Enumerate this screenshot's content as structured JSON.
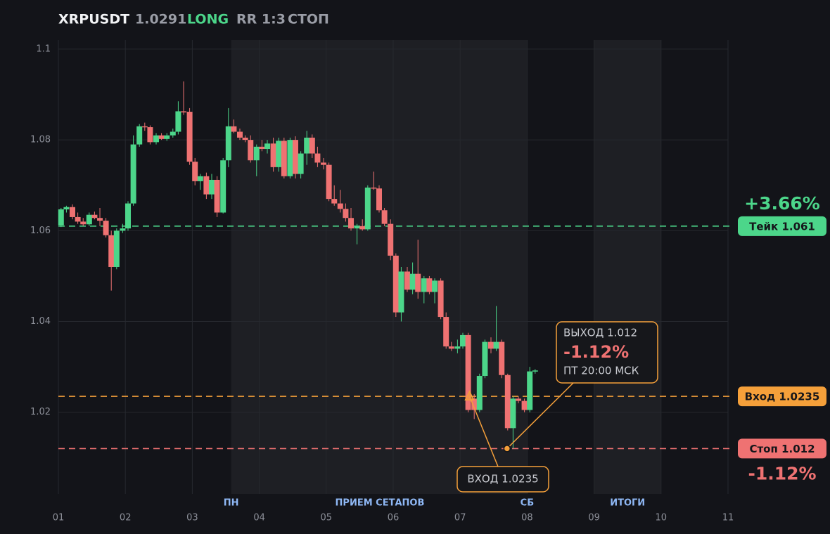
{
  "chart_data": {
    "type": "candlestick",
    "header": {
      "symbol": "XRPUSDT",
      "price": 1.0291,
      "side": "LONG",
      "rr": "RR 1:3",
      "status": "СТОП"
    },
    "x": [
      1.04,
      1.12,
      1.21,
      1.29,
      1.37,
      1.46,
      1.54,
      1.62,
      1.71,
      1.79,
      1.87,
      1.96,
      2.04,
      2.12,
      2.21,
      2.29,
      2.37,
      2.46,
      2.54,
      2.62,
      2.71,
      2.79,
      2.87,
      2.96,
      3.04,
      3.12,
      3.21,
      3.29,
      3.37,
      3.46,
      3.54,
      3.62,
      3.71,
      3.79,
      3.87,
      3.96,
      4.04,
      4.12,
      4.21,
      4.29,
      4.37,
      4.46,
      4.54,
      4.62,
      4.71,
      4.79,
      4.87,
      4.96,
      5.04,
      5.12,
      5.21,
      5.29,
      5.37,
      5.46,
      5.54,
      5.62,
      5.71,
      5.79,
      5.87,
      5.96,
      6.04,
      6.12,
      6.21,
      6.29,
      6.37,
      6.46,
      6.54,
      6.62,
      6.71,
      6.79,
      6.87,
      6.96,
      7.04,
      7.12,
      7.21,
      7.29,
      7.37,
      7.46,
      7.54,
      7.62,
      7.71,
      7.79,
      7.87,
      7.96,
      8.04,
      8.12
    ],
    "open": [
      1.0612,
      1.0647,
      1.0652,
      1.063,
      1.062,
      1.0614,
      1.0635,
      1.0628,
      1.0622,
      1.059,
      1.052,
      1.06,
      1.0605,
      1.066,
      1.079,
      1.083,
      1.0828,
      1.0795,
      1.081,
      1.0802,
      1.081,
      1.0818,
      1.0863,
      1.0862,
      1.0752,
      1.0709,
      1.072,
      1.068,
      1.0712,
      1.064,
      1.0755,
      1.083,
      1.0818,
      1.0805,
      1.08,
      1.0755,
      1.0785,
      1.078,
      1.0792,
      1.074,
      1.0798,
      1.072,
      1.08,
      1.0725,
      1.077,
      1.0805,
      1.077,
      1.075,
      1.0745,
      1.067,
      1.066,
      1.0648,
      1.0628,
      1.0605,
      1.061,
      1.0603,
      1.0695,
      1.0693,
      1.0645,
      1.0615,
      1.0545,
      1.042,
      1.051,
      1.047,
      1.0505,
      1.0465,
      1.0495,
      1.0465,
      1.049,
      1.041,
      1.0345,
      1.034,
      1.0345,
      1.037,
      1.023,
      1.0205,
      1.028,
      1.0355,
      1.034,
      1.0355,
      1.0282,
      1.0165,
      1.023,
      1.0225,
      1.0205,
      1.029
    ],
    "high": [
      1.065,
      1.0655,
      1.0658,
      1.064,
      1.0628,
      1.064,
      1.0642,
      1.065,
      1.0628,
      1.06,
      1.0605,
      1.0615,
      1.0665,
      1.081,
      1.0835,
      1.0838,
      1.0832,
      1.0815,
      1.0815,
      1.0815,
      1.0825,
      1.0885,
      1.0929,
      1.087,
      1.076,
      1.0725,
      1.0728,
      1.0725,
      1.072,
      1.076,
      1.087,
      1.0845,
      1.0825,
      1.081,
      1.081,
      1.079,
      1.08,
      1.08,
      1.0805,
      1.0805,
      1.0805,
      1.0805,
      1.0808,
      1.0775,
      1.082,
      1.0812,
      1.0785,
      1.076,
      1.075,
      1.07,
      1.069,
      1.066,
      1.065,
      1.0615,
      1.0625,
      1.07,
      1.073,
      1.07,
      1.065,
      1.0625,
      1.055,
      1.052,
      1.052,
      1.053,
      1.058,
      1.05,
      1.05,
      1.0495,
      1.0495,
      1.042,
      1.0355,
      1.036,
      1.0375,
      1.0375,
      1.024,
      1.0285,
      1.036,
      1.0365,
      1.0434,
      1.036,
      1.0285,
      1.0235,
      1.0235,
      1.023,
      1.03,
      1.0295
    ],
    "low": [
      1.0608,
      1.064,
      1.0625,
      1.0615,
      1.061,
      1.061,
      1.0625,
      1.061,
      1.0585,
      1.0468,
      1.0515,
      1.0595,
      1.06,
      1.0655,
      1.0785,
      1.082,
      1.079,
      1.079,
      1.08,
      1.0798,
      1.0805,
      1.0812,
      1.0855,
      1.0745,
      1.07,
      1.069,
      1.067,
      1.067,
      1.063,
      1.0638,
      1.074,
      1.0815,
      1.08,
      1.0795,
      1.075,
      1.072,
      1.0775,
      1.077,
      1.073,
      1.073,
      1.0715,
      1.0715,
      1.0715,
      1.0715,
      1.0745,
      1.076,
      1.074,
      1.0735,
      1.0665,
      1.0655,
      1.064,
      1.062,
      1.06,
      1.057,
      1.06,
      1.06,
      1.069,
      1.064,
      1.061,
      1.0535,
      1.041,
      1.04,
      1.0465,
      1.046,
      1.045,
      1.044,
      1.046,
      1.044,
      1.0405,
      1.034,
      1.0335,
      1.033,
      1.034,
      1.02,
      1.0185,
      1.02,
      1.0275,
      1.033,
      1.0335,
      1.0275,
      1.016,
      1.012,
      1.022,
      1.02,
      1.02,
      1.0285
    ],
    "close": [
      1.0647,
      1.0652,
      1.063,
      1.062,
      1.0614,
      1.0635,
      1.0628,
      1.0622,
      1.059,
      1.052,
      1.06,
      1.0605,
      1.066,
      1.079,
      1.083,
      1.0828,
      1.0795,
      1.081,
      1.0802,
      1.081,
      1.0818,
      1.0863,
      1.0862,
      1.0752,
      1.0709,
      1.072,
      1.068,
      1.0712,
      1.064,
      1.0755,
      1.083,
      1.0818,
      1.0805,
      1.08,
      1.0755,
      1.0785,
      1.078,
      1.0792,
      1.074,
      1.0798,
      1.072,
      1.08,
      1.0725,
      1.077,
      1.0805,
      1.077,
      1.075,
      1.0745,
      1.067,
      1.066,
      1.0648,
      1.0628,
      1.0605,
      1.061,
      1.0603,
      1.0695,
      1.0693,
      1.0645,
      1.0615,
      1.0545,
      1.042,
      1.051,
      1.047,
      1.0505,
      1.0465,
      1.0495,
      1.0465,
      1.049,
      1.041,
      1.0345,
      1.034,
      1.0345,
      1.037,
      1.0205,
      1.0205,
      1.028,
      1.0355,
      1.034,
      1.0355,
      1.0282,
      1.0165,
      1.023,
      1.0225,
      1.0205,
      1.029,
      1.0292
    ],
    "up_color": "#4cd68a",
    "down_color": "#ef7272",
    "xlim": [
      1,
      11
    ],
    "ylim": [
      1.002,
      1.102
    ],
    "xticks": [
      {
        "value": 1,
        "label": "01"
      },
      {
        "value": 2,
        "label": "02"
      },
      {
        "value": 3,
        "label": "03"
      },
      {
        "value": 4,
        "label": "04"
      },
      {
        "value": 5,
        "label": "05"
      },
      {
        "value": 6,
        "label": "06"
      },
      {
        "value": 7,
        "label": "07"
      },
      {
        "value": 8,
        "label": "08"
      },
      {
        "value": 9,
        "label": "09"
      },
      {
        "value": 10,
        "label": "10"
      },
      {
        "value": 11,
        "label": "11"
      }
    ],
    "yticks": [
      1.02,
      1.04,
      1.06,
      1.08,
      1.1
    ],
    "grid": true,
    "shaded": [
      {
        "from": 3.58,
        "to": 8.0
      },
      {
        "from": 9.0,
        "to": 10.0
      }
    ],
    "session_labels": [
      {
        "x": 3.58,
        "label": "ПН"
      },
      {
        "x": 5.8,
        "label": "ПРИЕМ СЕТАПОВ"
      },
      {
        "x": 8.0,
        "label": "СБ"
      },
      {
        "x": 9.5,
        "label": "ИТОГИ"
      }
    ],
    "levels": [
      {
        "value": 1.061,
        "label": "Тейк 1.061",
        "percent": "+3.66%",
        "color": "#4cd68a"
      },
      {
        "value": 1.0235,
        "label": "Вход 1.0235",
        "color": "#f5a03a"
      },
      {
        "value": 1.012,
        "label": "Стоп 1.012",
        "percent": "-1.12%",
        "color": "#ef7272"
      }
    ],
    "entry": {
      "x": 7.14,
      "y": 1.0235,
      "label": "ВХОД 1.0235",
      "color": "#f5a03a"
    },
    "exit": {
      "x": 7.7,
      "y": 1.012,
      "title": "ВЫХОД 1.012",
      "result": "-1.12%",
      "time": "ПТ 20:00 МСК",
      "color": "#f5a03a"
    }
  }
}
